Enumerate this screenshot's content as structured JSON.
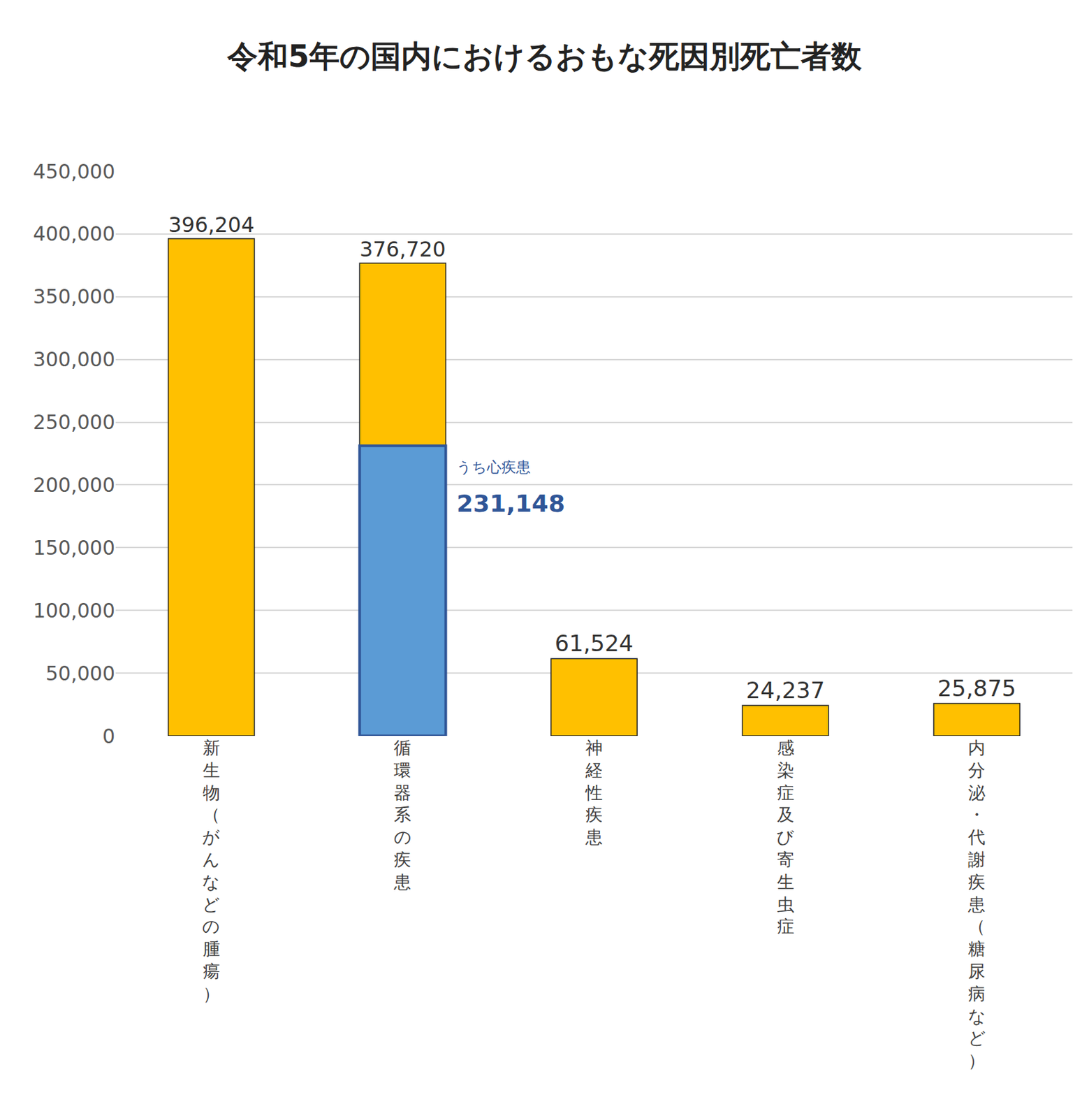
{
  "chart_data": {
    "type": "bar",
    "title": "令和5年の国内におけるおもな死因別死亡者数",
    "categories": [
      "新生物（がんなどの腫瘍）",
      "循環器系の疾患",
      "神経性疾患",
      "感染症及び寄生虫症",
      "内分泌・代謝疾患（糖尿病など）"
    ],
    "series": [
      {
        "color": "#FFC000",
        "values": [
          396204,
          376720,
          61524,
          24237,
          25875
        ],
        "value_labels": [
          "396,204",
          "376,720",
          "61,524",
          "24,237",
          "25,875"
        ]
      },
      {
        "name": "うち心疾患",
        "color": "#5B9BD5",
        "values": [
          null,
          231148,
          null,
          null,
          null
        ],
        "value_labels": [
          null,
          "231,148",
          null,
          null,
          null
        ]
      }
    ],
    "ylim": [
      0,
      450000
    ],
    "yticks": [
      0,
      {
        "value": 50000,
        "label": "50,000"
      },
      {
        "value": 100000,
        "label": "100,000"
      },
      {
        "value": 150000,
        "label": "150,000"
      },
      {
        "value": 200000,
        "label": "200,000"
      },
      {
        "value": 250000,
        "label": "250,000"
      },
      {
        "value": 300000,
        "label": "300,000"
      },
      {
        "value": 350000,
        "label": "350,000"
      },
      {
        "value": 400000,
        "label": "400,000"
      },
      {
        "value": 450000,
        "label": "450,000"
      }
    ],
    "grid": true,
    "data_labels": true
  }
}
